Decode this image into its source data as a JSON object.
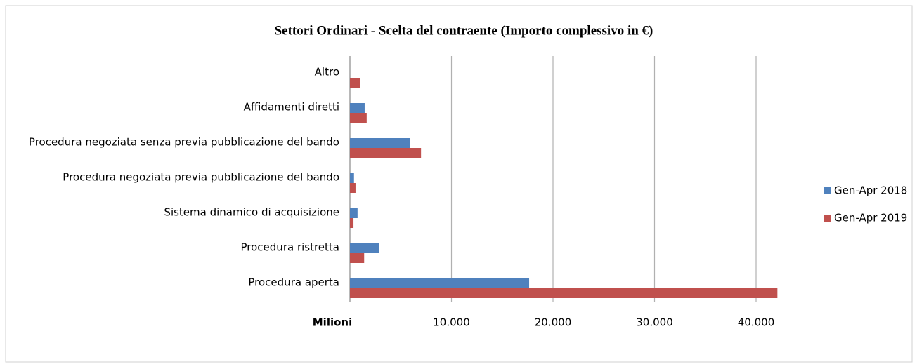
{
  "chart_data": {
    "type": "bar",
    "orientation": "horizontal",
    "title": "Settori Ordinari - Scelta del contraente (Importo complessivo in €)",
    "x_label": "Milioni",
    "categories": [
      "Altro",
      "Affidamenti diretti",
      "Procedura negoziata senza previa pubblicazione del bando",
      "Procedura negoziata previa pubblicazione del bando",
      "Sistema dinamico di acquisizione",
      "Procedura ristretta",
      "Procedura aperta"
    ],
    "series": [
      {
        "name": "Gen-Apr 2018",
        "color": "#4f81bd",
        "values": [
          0,
          1450,
          5950,
          400,
          750,
          2850,
          17650
        ]
      },
      {
        "name": "Gen-Apr 2019",
        "color": "#c0504d",
        "values": [
          1000,
          1650,
          7000,
          550,
          350,
          1400,
          42100
        ]
      }
    ],
    "xlim": [
      0,
      40000
    ],
    "xticks": [
      {
        "value": 10000,
        "label": "10.000"
      },
      {
        "value": 20000,
        "label": "20.000"
      },
      {
        "value": 30000,
        "label": "30.000"
      },
      {
        "value": 40000,
        "label": "40.000"
      }
    ],
    "grid": true,
    "legend": "right"
  }
}
